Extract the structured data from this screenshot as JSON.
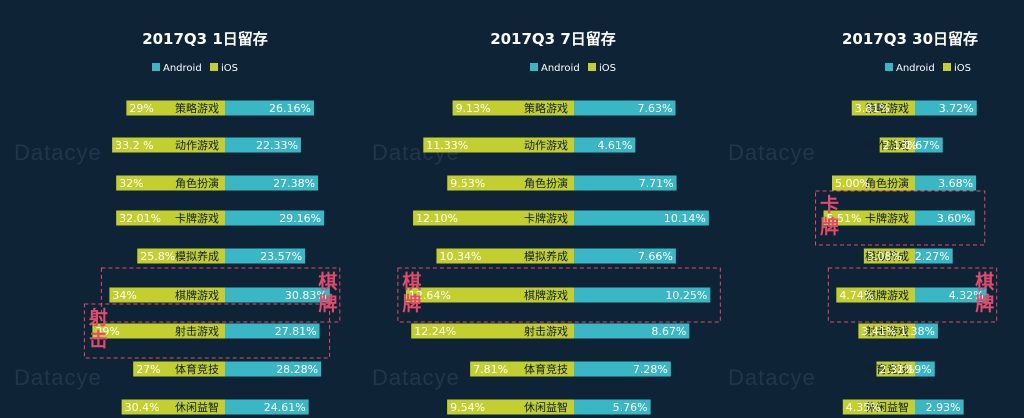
{
  "colors": {
    "background": "#0e2336",
    "android": "#3ab7c4",
    "ios": "#c2cf2e",
    "annotation": "#e14b6c",
    "text": "#ffffff"
  },
  "watermark": "Datacye",
  "annotations": [
    {
      "chart": 0,
      "rows": [
        5
      ],
      "label": "棋牌",
      "side": "right"
    },
    {
      "chart": 0,
      "rows": [
        6
      ],
      "label": "射击",
      "side": "left"
    },
    {
      "chart": 1,
      "rows": [
        5
      ],
      "label": "棋牌",
      "side": "left"
    },
    {
      "chart": 2,
      "rows": [
        3
      ],
      "label": "卡牌",
      "side": "left"
    },
    {
      "chart": 2,
      "rows": [
        5
      ],
      "label": "棋牌",
      "side": "right"
    }
  ],
  "chart_data": [
    {
      "type": "bar",
      "title": "2017Q3 1日留存",
      "legend_position": "top",
      "categories": [
        "策略游戏",
        "动作游戏",
        "角色扮演",
        "卡牌游戏",
        "模拟养成",
        "棋牌游戏",
        "射击游戏",
        "体育竞技",
        "休闲益智"
      ],
      "series": [
        {
          "name": "Android",
          "values": [
            26.16,
            22.33,
            27.38,
            29.16,
            23.57,
            30.83,
            27.81,
            28.28,
            24.61
          ],
          "labels": [
            "26.16%",
            "22.33%",
            "27.38%",
            "29.16%",
            "23.57%",
            "30.83%",
            "27.81%",
            "28.28%",
            "24.61%"
          ]
        },
        {
          "name": "iOS",
          "values": [
            29,
            33.2,
            32,
            32.01,
            25.8,
            34,
            39,
            27,
            30.4
          ],
          "labels": [
            "29%",
            "33.2 %",
            "32%",
            "32.01%",
            "25.8%",
            "34%",
            "39%",
            "27%",
            "30.4%"
          ]
        }
      ]
    },
    {
      "type": "bar",
      "title": "2017Q3 7日留存",
      "legend_position": "top",
      "categories": [
        "策略游戏",
        "动作游戏",
        "角色扮演",
        "卡牌游戏",
        "模拟养成",
        "棋牌游戏",
        "射击游戏",
        "体育竞技",
        "休闲益智"
      ],
      "series": [
        {
          "name": "Android",
          "values": [
            7.63,
            4.61,
            7.71,
            10.14,
            7.66,
            10.25,
            8.67,
            7.28,
            5.76
          ],
          "labels": [
            "7.63%",
            "4.61%",
            "7.71%",
            "10.14%",
            "7.66%",
            "10.25%",
            "8.67%",
            "7.28%",
            "5.76%"
          ]
        },
        {
          "name": "iOS",
          "values": [
            9.13,
            11.33,
            9.53,
            12.1,
            10.34,
            12.64,
            12.24,
            7.81,
            9.54
          ],
          "labels": [
            "9.13%",
            "11.33%",
            "9.53%",
            "12.10%",
            "10.34%",
            "12.64%",
            "12.24%",
            "7.81%",
            "9.54%"
          ]
        }
      ]
    },
    {
      "type": "bar",
      "title": "2017Q3 30日留存",
      "legend_position": "top",
      "categories": [
        "策略游戏",
        "动作游戏",
        "角色扮演",
        "卡牌游戏",
        "模拟养成",
        "棋牌游戏",
        "射击游戏",
        "体育竞技",
        "休闲益智"
      ],
      "series": [
        {
          "name": "Android",
          "values": [
            3.72,
            1.67,
            3.68,
            3.6,
            2.27,
            4.32,
            1.38,
            1.19,
            2.93
          ],
          "labels": [
            "3.72%",
            "1.67%",
            "3.68%",
            "3.60%",
            "2.27%",
            "4.32%",
            "1.38%",
            "1.19%",
            "2.93%"
          ]
        },
        {
          "name": "iOS",
          "values": [
            3.81,
            2.13,
            5.0,
            5.51,
            3.08,
            4.74,
            3.41,
            2.32,
            4.35
          ],
          "labels": [
            "3.81%",
            "2.13%",
            "5.00%",
            "5.51%",
            "3.08%",
            "4.74%",
            "3.41%",
            "2.32%",
            "4.35%"
          ]
        }
      ]
    }
  ]
}
